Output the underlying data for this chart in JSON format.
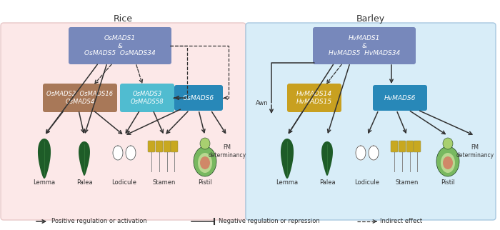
{
  "rice_bg": "#fce8e8",
  "barley_bg": "#d8edf8",
  "rice_title": "Rice",
  "barley_title": "Barley",
  "rice_bg_edge": "#e8c8c8",
  "barley_bg_edge": "#a8c8e0",
  "top_box_color": "#7788bb",
  "brown_box_color": "#a87858",
  "cyan_box_color": "#50bcd0",
  "blue_box_color": "#2888b8",
  "yellow_box_color": "#c8a020",
  "text_white": "#ffffff",
  "arrow_color": "#333333",
  "organ_dark_green": "#2a6030",
  "organ_mid_green": "#3a8040",
  "organ_light_green": "#80c870",
  "organ_yellow": "#c8a820",
  "organ_outline": "#1a4020",
  "pistil_green": "#78b860",
  "pistil_light": "#b8d890",
  "pistil_pink": "#d08868",
  "legend_pos": "Positive regulation or activation",
  "legend_neg": "Negative regulation or repression",
  "legend_ind": "Indirect effect",
  "rice_organs": [
    "Lemma",
    "Palea",
    "Lodicule",
    "Stamen",
    "Pistil"
  ],
  "barley_organs": [
    "Lemma",
    "Palea",
    "Lodicule",
    "Stamen",
    "Pistil"
  ]
}
